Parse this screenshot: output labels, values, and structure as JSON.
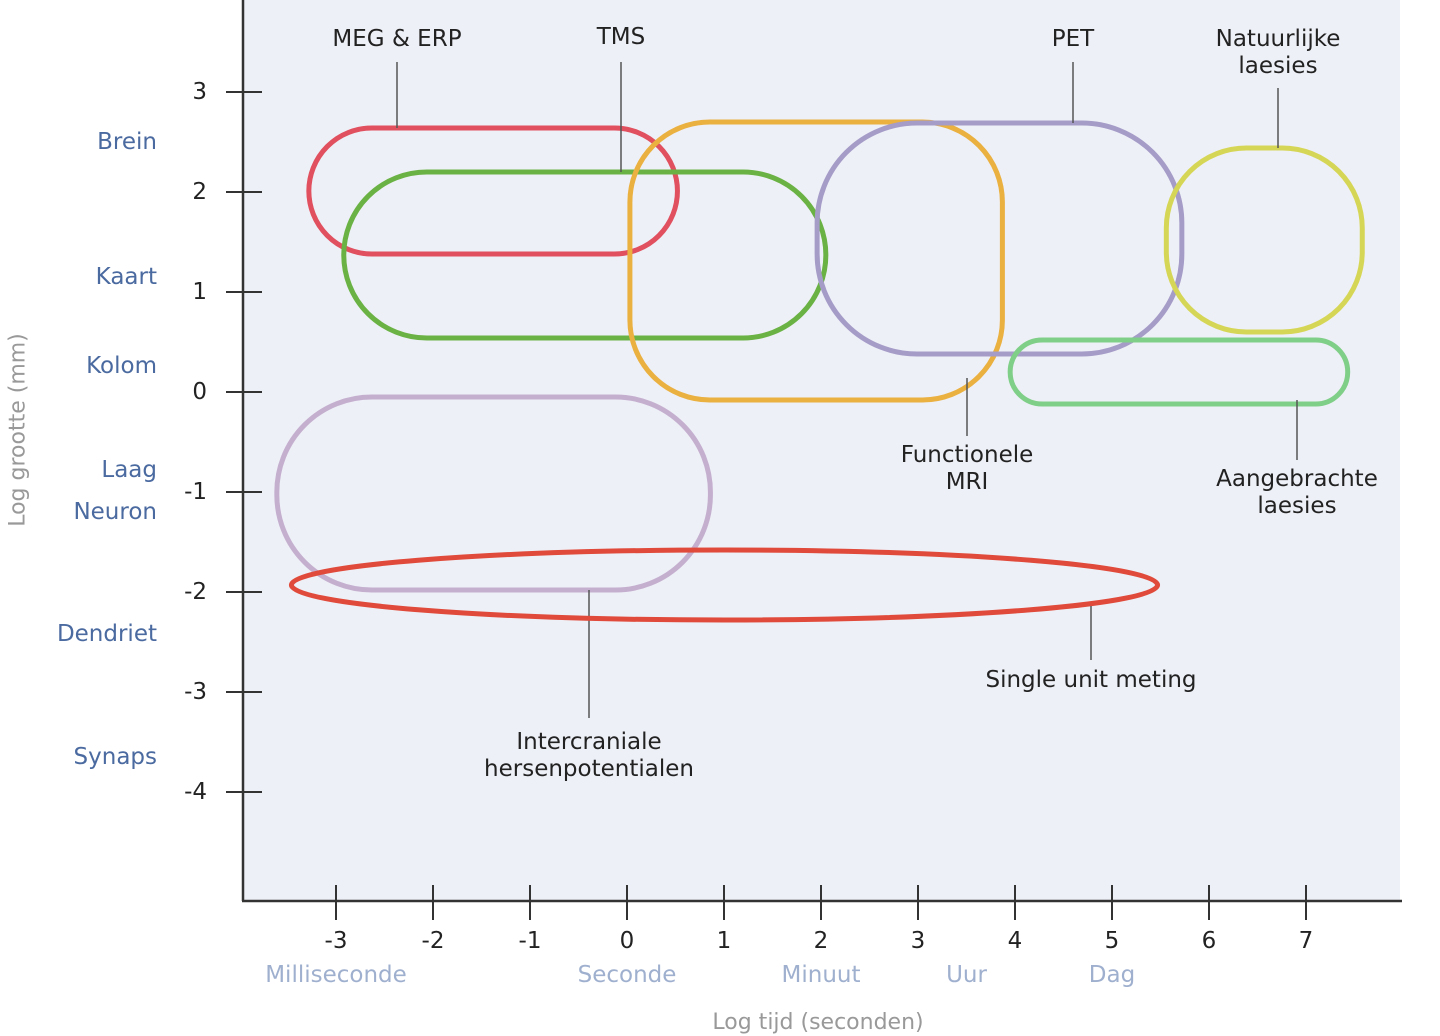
{
  "chart_data": {
    "type": "diagram",
    "xlabel": "Log tijd (seconden)",
    "ylabel": "Log grootte (mm)",
    "xticks": [
      "-3",
      "-2",
      "-1",
      "0",
      "1",
      "2",
      "3",
      "4",
      "5",
      "6",
      "7"
    ],
    "yticks": [
      "3",
      "2",
      "1",
      "0",
      "-1",
      "-2",
      "-3",
      "-4"
    ],
    "time_units": [
      {
        "label": "Milliseconde",
        "at": -3
      },
      {
        "label": "Seconde",
        "at": 0
      },
      {
        "label": "Minuut",
        "at": 2
      },
      {
        "label": "Uur",
        "at": 3.5
      },
      {
        "label": "Dag",
        "at": 5
      }
    ],
    "size_categories": [
      {
        "label": "Brein",
        "at": 2.5
      },
      {
        "label": "Kaart",
        "at": 1.15
      },
      {
        "label": "Kolom",
        "at": 0.26
      },
      {
        "label": "Laag",
        "at": -0.78
      },
      {
        "label": "Neuron",
        "at": -1.2
      },
      {
        "label": "Dendriet",
        "at": -2.42
      },
      {
        "label": "Synaps",
        "at": -3.65
      }
    ],
    "methods": [
      {
        "name": "MEG & ERP",
        "lines": [
          "MEG & ERP"
        ],
        "time": [
          -3.28,
          0.52
        ],
        "size": [
          1.38,
          2.64
        ],
        "color": "#e0505e"
      },
      {
        "name": "TMS",
        "lines": [
          "TMS"
        ],
        "time": [
          -2.92,
          2.05
        ],
        "size": [
          0.54,
          2.2
        ],
        "color": "#6ab244"
      },
      {
        "name": "Functionele MRI",
        "lines": [
          "Functionele",
          "MRI"
        ],
        "time": [
          0.03,
          3.87
        ],
        "size": [
          -0.08,
          2.7
        ],
        "color": "#eab040"
      },
      {
        "name": "PET",
        "lines": [
          "PET"
        ],
        "time": [
          1.96,
          5.72
        ],
        "size": [
          0.38,
          2.69
        ],
        "color": "#a59cc8"
      },
      {
        "name": "Natuurlijke laesies",
        "lines": [
          "Natuurlijke",
          "laesies"
        ],
        "time": [
          5.56,
          7.58
        ],
        "size": [
          0.6,
          2.44
        ],
        "color": "#d6d656"
      },
      {
        "name": "Aangebrachte laesies",
        "lines": [
          "Aangebrachte",
          "laesies"
        ],
        "time": [
          3.95,
          7.43
        ],
        "size": [
          -0.12,
          0.52
        ],
        "color": "#80cf88"
      },
      {
        "name": "Intercraniale hersenpotentialen",
        "lines": [
          "Intercraniale",
          "hersenpotentialen"
        ],
        "time": [
          -3.61,
          0.86
        ],
        "size": [
          -1.98,
          -0.05
        ],
        "color": "#c4afcf"
      },
      {
        "name": "Single unit meting",
        "lines": [
          "Single unit meting"
        ],
        "time": [
          -3.46,
          5.47
        ],
        "size": [
          -2.28,
          -1.58
        ],
        "color": "#e04a3a",
        "shape": "ellipse"
      }
    ]
  }
}
